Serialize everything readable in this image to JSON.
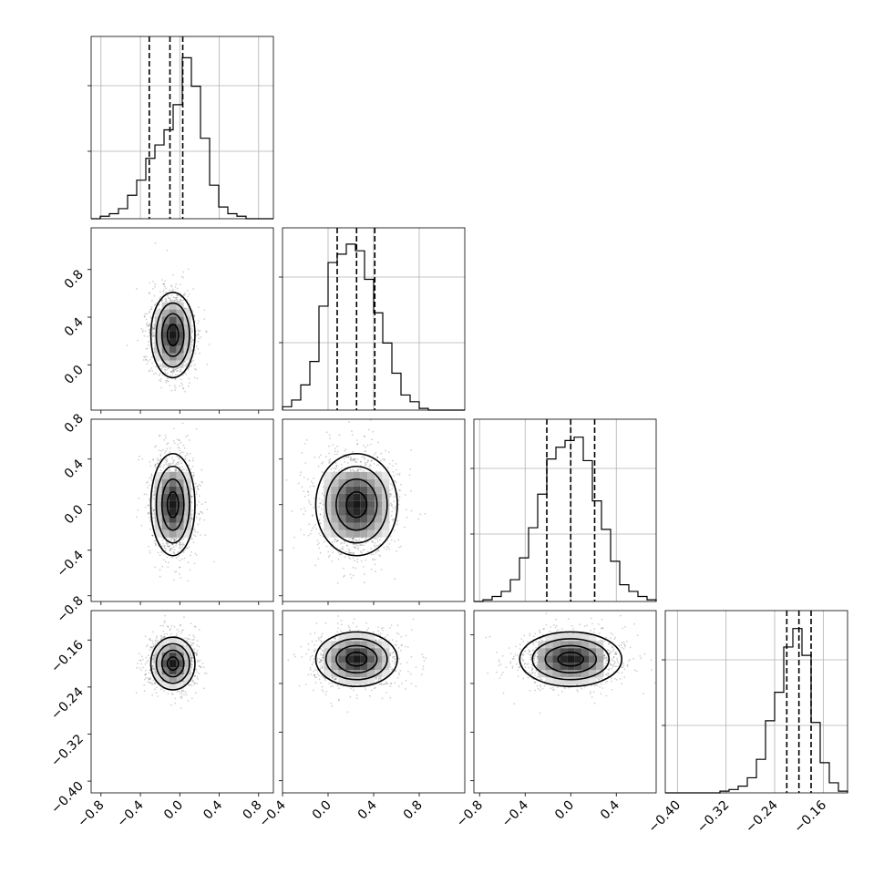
{
  "chart_data": {
    "type": "corner",
    "title": "",
    "n_params": 4,
    "params": [
      {
        "label": "",
        "range": [
          -0.9,
          0.95
        ],
        "ticks": [
          -0.8,
          -0.4,
          0.0,
          0.4,
          0.8
        ],
        "tick_labels": [
          "−0.8",
          "−0.4",
          "0.0",
          "0.4",
          "0.8"
        ],
        "quantiles": [
          -0.31,
          -0.1,
          0.03
        ],
        "hist": [
          0,
          0.015,
          0.03,
          0.06,
          0.14,
          0.23,
          0.36,
          0.44,
          0.53,
          0.68,
          0.96,
          0.79,
          0.48,
          0.2,
          0.07,
          0.03,
          0.015,
          0.0,
          0.0,
          0.0
        ],
        "mean": -0.07,
        "sd": 0.1
      },
      {
        "label": "",
        "range": [
          -0.4,
          1.2
        ],
        "ticks": [
          -0.4,
          0.0,
          0.4,
          0.8
        ],
        "tick_labels": [
          "−0.4",
          "0.0",
          "0.4",
          "0.8"
        ],
        "quantiles": [
          0.08,
          0.25,
          0.41
        ],
        "hist": [
          0.02,
          0.06,
          0.15,
          0.29,
          0.62,
          0.88,
          0.93,
          0.99,
          0.95,
          0.78,
          0.58,
          0.4,
          0.22,
          0.09,
          0.05,
          0.01,
          0.0,
          0.0,
          0.0,
          0.0
        ],
        "mean": 0.25,
        "sd": 0.16
      },
      {
        "label": "",
        "range": [
          -0.85,
          0.75
        ],
        "ticks": [
          -0.8,
          -0.4,
          0.0,
          0.4,
          0.8
        ],
        "tick_labels": [
          "−0.8",
          "−0.4",
          "0.0",
          "0.4",
          "0.8"
        ],
        "quantiles": [
          -0.21,
          0.0,
          0.21
        ],
        "hist": [
          0.0,
          0.01,
          0.03,
          0.06,
          0.13,
          0.26,
          0.44,
          0.64,
          0.85,
          0.92,
          0.96,
          0.98,
          0.84,
          0.6,
          0.43,
          0.24,
          0.1,
          0.06,
          0.03,
          0.01
        ],
        "mean": 0.0,
        "sd": 0.2
      },
      {
        "label": "",
        "range": [
          -0.42,
          -0.12
        ],
        "ticks": [
          -0.4,
          -0.32,
          -0.24,
          -0.16
        ],
        "tick_labels": [
          "−0.40",
          "−0.32",
          "−0.24",
          "−0.16"
        ],
        "quantiles": [
          -0.22,
          -0.2,
          -0.18
        ],
        "hist": [
          0.0,
          0.0,
          0.0,
          0.0,
          0.0,
          0.0,
          0.01,
          0.02,
          0.04,
          0.09,
          0.2,
          0.43,
          0.6,
          0.87,
          0.98,
          0.82,
          0.42,
          0.18,
          0.06,
          0.01
        ],
        "mean": -0.2,
        "sd": 0.02
      }
    ],
    "pairs": [
      {
        "row": 1,
        "col": 0,
        "ylim": [
          -0.38,
          1.15
        ],
        "yticks": [
          0.0,
          0.4,
          0.8
        ],
        "ytick_labels": [
          "0.0",
          "0.4",
          "0.8"
        ]
      },
      {
        "row": 2,
        "col": 0,
        "ylim": [
          -0.85,
          0.75
        ],
        "yticks": [
          -0.8,
          -0.4,
          0.0,
          0.4,
          0.8
        ],
        "ytick_labels": [
          "−0.8",
          "−0.4",
          "0.0",
          "0.4",
          "0.8"
        ]
      },
      {
        "row": 2,
        "col": 1
      },
      {
        "row": 3,
        "col": 0,
        "ylim": [
          -0.42,
          -0.11
        ],
        "yticks": [
          -0.4,
          -0.32,
          -0.24,
          -0.16
        ],
        "ytick_labels": [
          "−0.40",
          "−0.32",
          "−0.24",
          "−0.16"
        ]
      },
      {
        "row": 3,
        "col": 1
      },
      {
        "row": 3,
        "col": 2
      }
    ],
    "contour_levels_sigma": [
      0.5,
      1.0,
      1.5,
      2.0
    ],
    "grid": true,
    "colors": {
      "line": "#000000",
      "grid": "#b0b0b0",
      "density_dark": "#000000",
      "scatter": "#000000"
    }
  }
}
